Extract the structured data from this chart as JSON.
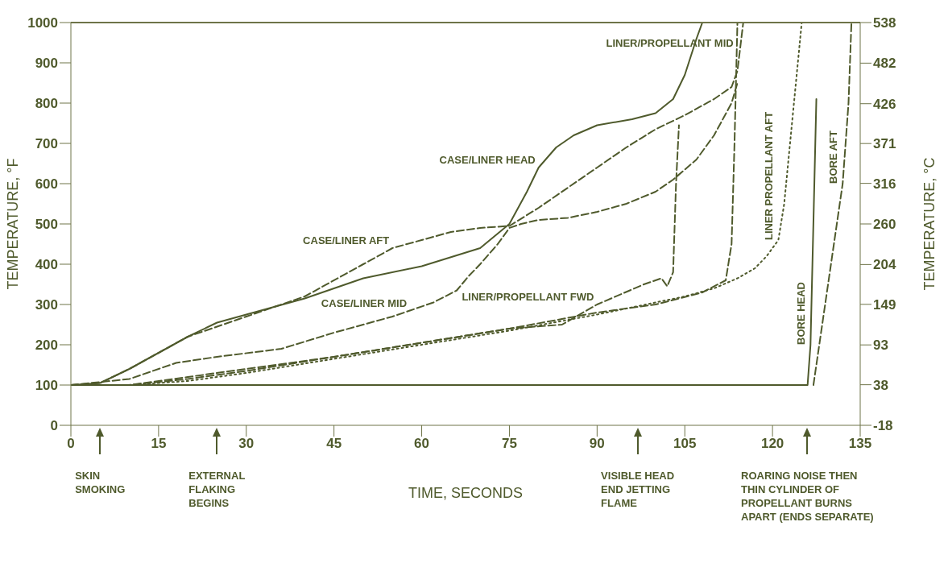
{
  "chart_data": {
    "type": "line",
    "xlabel": "TIME, SECONDS",
    "ylabel": "TEMPERATURE, °F",
    "y2label": "TEMPERATURE, °C",
    "xlim": [
      0,
      135
    ],
    "xticks": [
      0,
      15,
      30,
      45,
      60,
      75,
      90,
      105,
      120,
      135
    ],
    "ylim": [
      0,
      1000
    ],
    "yticks": [
      0,
      100,
      200,
      300,
      400,
      500,
      600,
      700,
      800,
      900,
      1000
    ],
    "y2lim": [
      -18,
      538
    ],
    "y2ticks": [
      -18,
      38,
      93,
      149,
      204,
      260,
      316,
      371,
      426,
      482,
      538
    ],
    "marker": "none",
    "series": [
      {
        "color": "#4f5a2c",
        "line_style": "solid",
        "x": [
          0,
          5,
          10,
          15,
          20,
          25,
          30,
          40,
          50,
          60,
          70,
          75,
          78,
          80,
          83,
          86,
          90,
          96,
          100,
          103,
          105,
          107,
          108
        ],
        "values": [
          100,
          105,
          140,
          180,
          220,
          255,
          275,
          315,
          365,
          395,
          440,
          500,
          580,
          640,
          690,
          720,
          745,
          760,
          775,
          810,
          870,
          960,
          1000
        ]
      },
      {
        "color": "#4f5a2c",
        "line_style": "dashed",
        "x": [
          0,
          5,
          10,
          20,
          30,
          40,
          50,
          55,
          60,
          65,
          70,
          75,
          80,
          85,
          90,
          95,
          100,
          105,
          110,
          113,
          114,
          115
        ],
        "values": [
          100,
          105,
          140,
          220,
          270,
          320,
          400,
          440,
          460,
          480,
          490,
          495,
          540,
          590,
          640,
          690,
          735,
          770,
          810,
          840,
          880,
          1000
        ]
      },
      {
        "color": "#4f5a2c",
        "line_style": "dashed",
        "x": [
          0,
          10,
          18,
          25,
          36,
          45,
          55,
          62,
          66,
          68,
          70,
          73,
          75,
          77,
          80,
          85,
          90,
          95,
          100,
          103,
          107,
          110,
          113,
          114
        ],
        "values": [
          100,
          115,
          155,
          170,
          190,
          230,
          270,
          305,
          335,
          370,
          400,
          450,
          490,
          500,
          510,
          515,
          530,
          550,
          580,
          610,
          660,
          720,
          800,
          850
        ]
      },
      {
        "color": "#4f5a2c",
        "line_style": "dashed",
        "x": [
          0,
          10,
          20,
          30,
          45,
          60,
          75,
          84,
          90,
          98,
          101,
          102,
          103,
          103.5,
          104
        ],
        "values": [
          100,
          100,
          120,
          140,
          170,
          205,
          240,
          250,
          300,
          350,
          365,
          345,
          380,
          600,
          745
        ]
      },
      {
        "color": "#4f5a2c",
        "line_style": "dashed",
        "x": [
          0,
          10,
          20,
          30,
          45,
          60,
          75,
          90,
          100,
          108,
          112,
          113,
          113.5,
          114
        ],
        "values": [
          100,
          100,
          115,
          135,
          170,
          205,
          240,
          280,
          300,
          330,
          360,
          450,
          700,
          1000
        ]
      },
      {
        "color": "#4f5a2c",
        "line_style": "dotted",
        "x": [
          0,
          10,
          20,
          30,
          45,
          60,
          75,
          90,
          105,
          110,
          114,
          117,
          119,
          121,
          122,
          123,
          124,
          125
        ],
        "values": [
          100,
          100,
          110,
          130,
          165,
          200,
          235,
          275,
          320,
          340,
          365,
          390,
          420,
          460,
          550,
          700,
          850,
          1000
        ]
      },
      {
        "color": "#4f5a2c",
        "line_style": "solid",
        "x": [
          0,
          126,
          126.5,
          127.5
        ],
        "values": [
          100,
          100,
          200,
          810
        ]
      },
      {
        "color": "#4f5a2c",
        "line_style": "dashed",
        "x": [
          127,
          128,
          130,
          132,
          133,
          133.5
        ],
        "values": [
          100,
          200,
          400,
          600,
          800,
          1000
        ]
      }
    ],
    "annotations": [
      {
        "text": "CASE/LINER HEAD",
        "x": 80,
        "y": 640
      },
      {
        "text": "CASE/LINER AFT",
        "x": 55,
        "y": 440
      },
      {
        "text": "CASE/LINER MID",
        "x": 58,
        "y": 285
      },
      {
        "text": "LINER/PROPELLANT FWD",
        "x": 90,
        "y": 300
      },
      {
        "text": "LINER/PROPELLANT MID",
        "x": 113.88,
        "y": 930
      },
      {
        "text": "LINER PROPELLANT AFT",
        "x": 121,
        "y": 460
      },
      {
        "text": "BORE HEAD",
        "x": 126.5,
        "y": 200
      },
      {
        "text": "BORE AFT",
        "x": 132,
        "y": 600
      },
      "SKIN\nSMOKING",
      "EXTERNAL\nFLAKING\nBEGINS",
      "VISIBLE HEAD\nEND JETTING\nFLAME",
      "ROARING NOISE THEN\nTHIN CYLINDER OF\nPROPELLANT BURNS\nAPART (ENDS SEPARATE)"
    ]
  }
}
